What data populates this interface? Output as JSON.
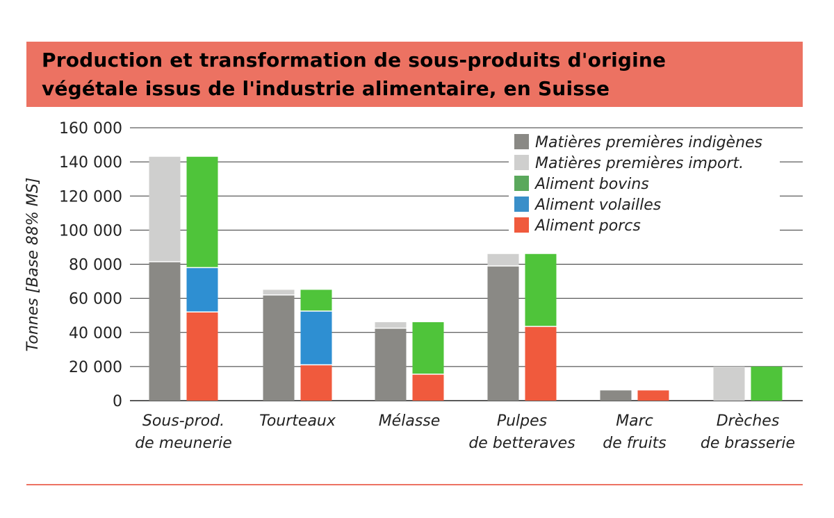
{
  "title": {
    "line1": "Production et transformation de sous-produits d'origine",
    "line2": "végétale issus de l'industrie alimentaire, en Suisse"
  },
  "colors": {
    "header_bg": "#ec7262",
    "indigenes": "#8a8985",
    "import": "#cfcfce",
    "bovins": "#4fc43a",
    "volailles": "#2e8fd2",
    "porcs": "#f05a3d",
    "legend_bovins": "#5aa85c",
    "legend_volailles": "#3a8fc9",
    "legend_porcs": "#f05a3d"
  },
  "chart_data": {
    "type": "bar",
    "stacked": true,
    "ylabel": "Tonnes [Base 88% MS]",
    "ylim": [
      0,
      160000
    ],
    "yticks": [
      0,
      20000,
      40000,
      60000,
      80000,
      100000,
      120000,
      140000,
      160000
    ],
    "ytick_labels": [
      "0",
      "20 000",
      "40 000",
      "60 000",
      "80 000",
      "100 000",
      "120 000",
      "140 000",
      "160 000"
    ],
    "grid": true,
    "legend_position": "top-right",
    "categories": [
      [
        "Sous-prod.",
        "de meunerie"
      ],
      [
        "Tourteaux"
      ],
      [
        "Mélasse"
      ],
      [
        "Pulpes",
        "de betteraves"
      ],
      [
        "Marc",
        "de fruits"
      ],
      [
        "Drèches",
        "de brasserie"
      ]
    ],
    "stack_groups": [
      {
        "name": "Matières premières",
        "series": [
          {
            "name": "Matières premières indigènes",
            "color_key": "indigenes",
            "values": [
              81500,
              62000,
              42500,
              79000,
              6000,
              0
            ]
          },
          {
            "name": "Matières premières import.",
            "color_key": "import",
            "values": [
              61500,
              3000,
              3500,
              7000,
              0,
              20000
            ]
          }
        ]
      },
      {
        "name": "Aliments",
        "series": [
          {
            "name": "Aliment porcs",
            "color_key": "porcs",
            "values": [
              52000,
              21000,
              15500,
              43500,
              6000,
              0
            ]
          },
          {
            "name": "Aliment volailles",
            "color_key": "volailles",
            "values": [
              26000,
              31500,
              0,
              0,
              0,
              0
            ]
          },
          {
            "name": "Aliment bovins",
            "color_key": "bovins",
            "values": [
              65000,
              12500,
              30500,
              42500,
              0,
              20000
            ]
          }
        ]
      }
    ],
    "legend": [
      {
        "label": "Matières premières indigènes",
        "color_key": "indigenes"
      },
      {
        "label": "Matières premières import.",
        "color_key": "import"
      },
      {
        "label": "Aliment bovins",
        "color_key": "legend_bovins"
      },
      {
        "label": "Aliment volailles",
        "color_key": "legend_volailles"
      },
      {
        "label": "Aliment porcs",
        "color_key": "legend_porcs"
      }
    ]
  }
}
